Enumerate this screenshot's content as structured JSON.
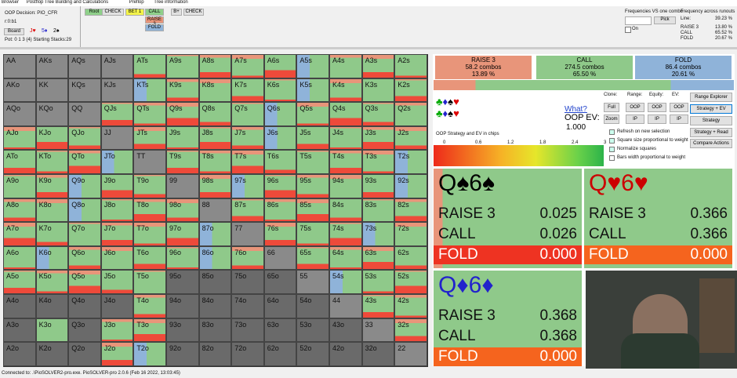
{
  "menu": [
    "Browser",
    "Postflop Tree Building and Calculations",
    "Preflop",
    "Tree information"
  ],
  "decision": "OOP Decision:  PIO_CFR",
  "line_code": "r:0:b1",
  "board_button": "Board",
  "board_cards": [
    "J♥",
    "5♦",
    "2♠"
  ],
  "pot": "Pot: 0 1 3 (4) Starting Stacks:29",
  "tree_buttons": [
    "Root",
    "CHECK",
    "BET 1",
    "CALL",
    "RAISE 3",
    "FOLD"
  ],
  "tree_buttons2": [
    "B+",
    "CHECK"
  ],
  "freq_vs_combo": "Frequencies VS one combo",
  "pick": "Pick",
  "on": "On",
  "freq_runouts": {
    "title": "Frequency across runouts",
    "rows": [
      [
        "Line:",
        "39.23 %"
      ],
      [
        "RAISE 3",
        "13.80 %"
      ],
      [
        "CALL",
        "65.52 %"
      ],
      [
        "FOLD",
        "20.67 %"
      ]
    ]
  },
  "grid": [
    [
      "AA",
      "AKs",
      "AQs",
      "AJs",
      "ATs",
      "A9s",
      "A8s",
      "A7s",
      "A6s",
      "A5s",
      "A4s",
      "A3s",
      "A2s"
    ],
    [
      "AKo",
      "KK",
      "KQs",
      "KJs",
      "KTs",
      "K9s",
      "K8s",
      "K7s",
      "K6s",
      "K5s",
      "K4s",
      "K3s",
      "K2s"
    ],
    [
      "AQo",
      "KQo",
      "QQ",
      "QJs",
      "QTs",
      "Q9s",
      "Q8s",
      "Q7s",
      "Q6s",
      "Q5s",
      "Q4s",
      "Q3s",
      "Q2s"
    ],
    [
      "AJo",
      "KJo",
      "QJo",
      "JJ",
      "JTs",
      "J9s",
      "J8s",
      "J7s",
      "J6s",
      "J5s",
      "J4s",
      "J3s",
      "J2s"
    ],
    [
      "ATo",
      "KTo",
      "QTo",
      "JTo",
      "TT",
      "T9s",
      "T8s",
      "T7s",
      "T6s",
      "T5s",
      "T4s",
      "T3s",
      "T2s"
    ],
    [
      "A9o",
      "K9o",
      "Q9o",
      "J9o",
      "T9o",
      "99",
      "98s",
      "97s",
      "96s",
      "95s",
      "94s",
      "93s",
      "92s"
    ],
    [
      "A8o",
      "K8o",
      "Q8o",
      "J8o",
      "T8o",
      "98o",
      "88",
      "87s",
      "86s",
      "85s",
      "84s",
      "83s",
      "82s"
    ],
    [
      "A7o",
      "K7o",
      "Q7o",
      "J7o",
      "T7o",
      "97o",
      "87o",
      "77",
      "76s",
      "75s",
      "74s",
      "73s",
      "72s"
    ],
    [
      "A6o",
      "K6o",
      "Q6o",
      "J6o",
      "T6o",
      "96o",
      "86o",
      "76o",
      "66",
      "65s",
      "64s",
      "63s",
      "62s"
    ],
    [
      "A5o",
      "K5o",
      "Q5o",
      "J5o",
      "T5o",
      "95o",
      "85o",
      "75o",
      "65o",
      "55",
      "54s",
      "53s",
      "52s"
    ],
    [
      "A4o",
      "K4o",
      "Q4o",
      "J4o",
      "T4o",
      "94o",
      "84o",
      "74o",
      "64o",
      "54o",
      "44",
      "43s",
      "42s"
    ],
    [
      "A3o",
      "K3o",
      "Q3o",
      "J3o",
      "T3o",
      "93o",
      "83o",
      "73o",
      "63o",
      "53o",
      "43o",
      "33",
      "32s"
    ],
    [
      "A2o",
      "K2o",
      "Q2o",
      "J2o",
      "T2o",
      "92o",
      "82o",
      "72o",
      "62o",
      "52o",
      "42o",
      "32o",
      "22"
    ]
  ],
  "summary": [
    {
      "action": "RAISE 3",
      "combos": "58.2 combos",
      "pct": "13.89 %"
    },
    {
      "action": "CALL",
      "combos": "274.5 combos",
      "pct": "65.50 %"
    },
    {
      "action": "FOLD",
      "combos": "86.4 combos",
      "pct": "20.61 %"
    }
  ],
  "what": "What?",
  "ev_label": "OOP EV:",
  "ev_value": "1.000",
  "option_labels": [
    "Clone:",
    "Range:",
    "Equity:",
    "EV:"
  ],
  "option_buttons": [
    [
      "Full",
      "OOP",
      "OOP",
      "OOP"
    ],
    [
      "Zoom",
      "IP",
      "IP",
      "IP"
    ]
  ],
  "checkboxes": [
    "Refresh on new selection",
    "Square size proportional to weight",
    "Normalize squares",
    "Bars width proportional to weight"
  ],
  "side_buttons": [
    "Range Explorer",
    "Strategy + EV",
    "Strategy",
    "Strategy + Read",
    "Compare Actions"
  ],
  "scale_title": "OOP Strategy and EV in chips",
  "scale_ticks": [
    "0",
    "0.6",
    "1.2",
    "1.8",
    "2.4",
    "3"
  ],
  "combos": [
    {
      "hand": "Q♠6♠",
      "rows": [
        [
          "RAISE 3",
          "0.025"
        ],
        [
          "CALL",
          "0.026"
        ],
        [
          "FOLD",
          "0.000"
        ]
      ]
    },
    {
      "hand": "Q♥6♥",
      "rows": [
        [
          "RAISE 3",
          "0.366"
        ],
        [
          "CALL",
          "0.366"
        ],
        [
          "FOLD",
          "0.000"
        ]
      ]
    },
    {
      "hand": "Q♦6♦",
      "rows": [
        [
          "RAISE 3",
          "0.368"
        ],
        [
          "CALL",
          "0.368"
        ],
        [
          "FOLD",
          "0.000"
        ]
      ]
    }
  ],
  "status": "Connected to: .\\PioSOLVER2-pro.exe. PioSOLVER-pro 2.0.6 (Feb 16 2022, 13:03:45)"
}
